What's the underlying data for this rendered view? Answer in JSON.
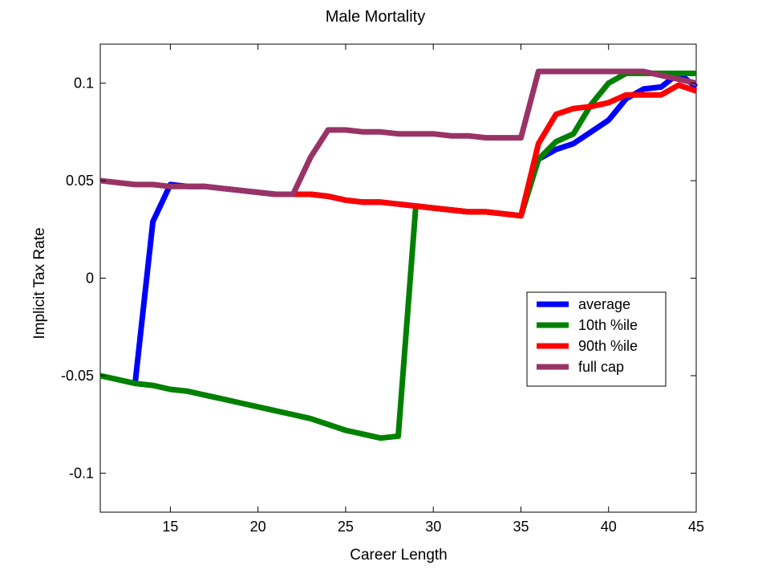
{
  "chart_data": {
    "type": "line",
    "title": "Male Mortality",
    "xlabel": "Career Length",
    "ylabel": "Implicit Tax Rate",
    "xlim": [
      11,
      45
    ],
    "ylim": [
      -0.12,
      0.12
    ],
    "xticks": [
      15,
      20,
      25,
      30,
      35,
      40,
      45
    ],
    "xtick_labels": [
      "15",
      "20",
      "25",
      "30",
      "35",
      "40",
      "45"
    ],
    "yticks": [
      -0.1,
      -0.05,
      0,
      0.05,
      0.1
    ],
    "ytick_labels": [
      "-0.1",
      "-0.05",
      "0",
      "0.05",
      "0.1"
    ],
    "grid": false,
    "legend_position": "right",
    "x": [
      11,
      12,
      13,
      14,
      15,
      16,
      17,
      18,
      19,
      20,
      21,
      22,
      23,
      24,
      25,
      26,
      27,
      28,
      29,
      30,
      31,
      32,
      33,
      34,
      35,
      36,
      37,
      38,
      39,
      40,
      41,
      42,
      43,
      44,
      45
    ],
    "series": [
      {
        "name": "average",
        "color": "#0000ff",
        "values": [
          null,
          null,
          -0.053,
          0.029,
          0.048,
          0.047,
          0.047,
          0.046,
          0.045,
          0.044,
          0.043,
          0.043,
          0.043,
          0.042,
          0.04,
          0.039,
          0.039,
          0.038,
          0.037,
          0.036,
          0.035,
          0.034,
          0.034,
          0.033,
          0.032,
          0.061,
          0.066,
          0.069,
          0.075,
          0.081,
          0.092,
          0.097,
          0.098,
          0.105,
          0.098
        ]
      },
      {
        "name": "10th %ile",
        "color": "#008000",
        "values": [
          -0.05,
          -0.052,
          -0.054,
          -0.055,
          -0.057,
          -0.058,
          -0.06,
          -0.062,
          -0.064,
          -0.066,
          -0.068,
          -0.07,
          -0.072,
          -0.075,
          -0.078,
          -0.08,
          -0.082,
          -0.081,
          0.037,
          0.036,
          0.035,
          0.034,
          0.034,
          0.033,
          0.032,
          0.061,
          0.07,
          0.074,
          0.089,
          0.1,
          0.105,
          0.105,
          0.105,
          0.105,
          0.105
        ]
      },
      {
        "name": "90th %ile",
        "color": "#ff0000",
        "values": [
          null,
          null,
          null,
          null,
          null,
          null,
          null,
          null,
          null,
          null,
          null,
          0.043,
          0.043,
          0.042,
          0.04,
          0.039,
          0.039,
          0.038,
          0.037,
          0.036,
          0.035,
          0.034,
          0.034,
          0.033,
          0.032,
          0.069,
          0.084,
          0.087,
          0.088,
          0.09,
          0.094,
          0.094,
          0.094,
          0.099,
          0.096
        ]
      },
      {
        "name": "full cap",
        "color": "#993366",
        "values": [
          0.05,
          0.049,
          0.048,
          0.048,
          0.047,
          0.047,
          0.047,
          0.046,
          0.045,
          0.044,
          0.043,
          0.043,
          0.062,
          0.076,
          0.076,
          0.075,
          0.075,
          0.074,
          0.074,
          0.074,
          0.073,
          0.073,
          0.072,
          0.072,
          0.072,
          0.106,
          0.106,
          0.106,
          0.106,
          0.106,
          0.106,
          0.106,
          0.104,
          0.102,
          0.1
        ]
      }
    ]
  }
}
